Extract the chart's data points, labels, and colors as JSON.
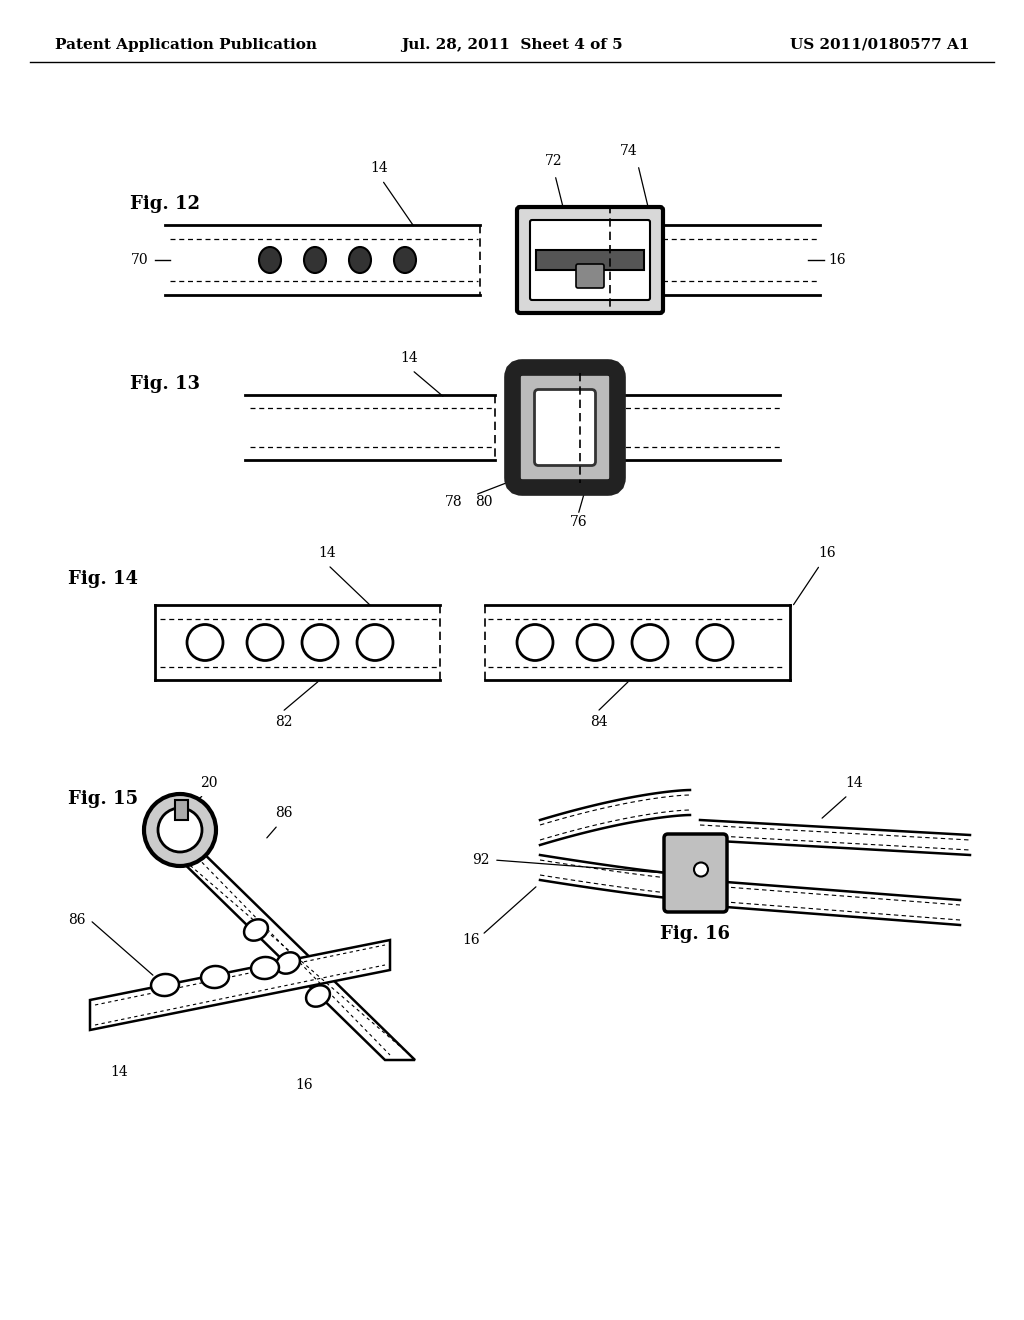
{
  "background_color": "#ffffff",
  "header_left": "Patent Application Publication",
  "header_center": "Jul. 28, 2011  Sheet 4 of 5",
  "header_right": "US 2011/0180577 A1",
  "header_fontsize": 11
}
